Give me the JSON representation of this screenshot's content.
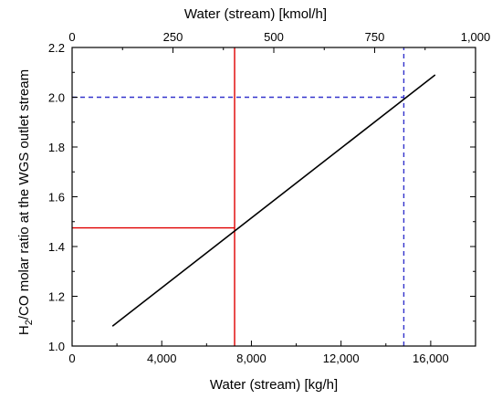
{
  "chart_data": {
    "type": "line",
    "x_bottom": {
      "label": "Water (stream) [kg/h]",
      "range": [
        0,
        18000
      ],
      "ticks": [
        0,
        4000,
        8000,
        12000,
        16000
      ],
      "tick_labels": [
        "0",
        "4,000",
        "8,000",
        "12,000",
        "16,000"
      ],
      "minor_step": 2000
    },
    "x_top": {
      "label": "Water (stream)  [kmol/h]",
      "range": [
        0,
        1000
      ],
      "ticks": [
        0,
        250,
        500,
        750,
        1000
      ],
      "tick_labels": [
        "0",
        "250",
        "500",
        "750",
        "1,000"
      ],
      "minor_step": 125
    },
    "y": {
      "label_main": "H",
      "label_sub": "2",
      "label_rest": "/CO molar ratio at the WGS outlet stream",
      "range": [
        1.0,
        2.2
      ],
      "ticks": [
        1.0,
        1.2,
        1.4,
        1.6,
        1.8,
        2.0,
        2.2
      ],
      "tick_labels": [
        "1.0",
        "1.2",
        "1.4",
        "1.6",
        "1.8",
        "2.0",
        "2.2"
      ],
      "minor_step": 0.1
    },
    "series": [
      {
        "points": [
          [
            1800,
            1.08
          ],
          [
            16200,
            2.09
          ]
        ],
        "color": "#000000",
        "style": "solid"
      }
    ],
    "reference_lines": [
      {
        "orientation": "vertical",
        "x": 7250,
        "y_from": 1.0,
        "y_to": 2.2,
        "color": "#e00000",
        "style": "solid"
      },
      {
        "orientation": "horizontal",
        "y": 1.475,
        "x_from": 0,
        "x_to": 7250,
        "color": "#e00000",
        "style": "solid"
      },
      {
        "orientation": "vertical",
        "x": 14800,
        "y_from": 1.0,
        "y_to": 2.2,
        "color": "#3333cc",
        "style": "dashed"
      },
      {
        "orientation": "horizontal",
        "y": 2.0,
        "x_from": 0,
        "x_to": 14800,
        "color": "#3333cc",
        "style": "dashed"
      }
    ],
    "grid": false,
    "legend": "none"
  }
}
